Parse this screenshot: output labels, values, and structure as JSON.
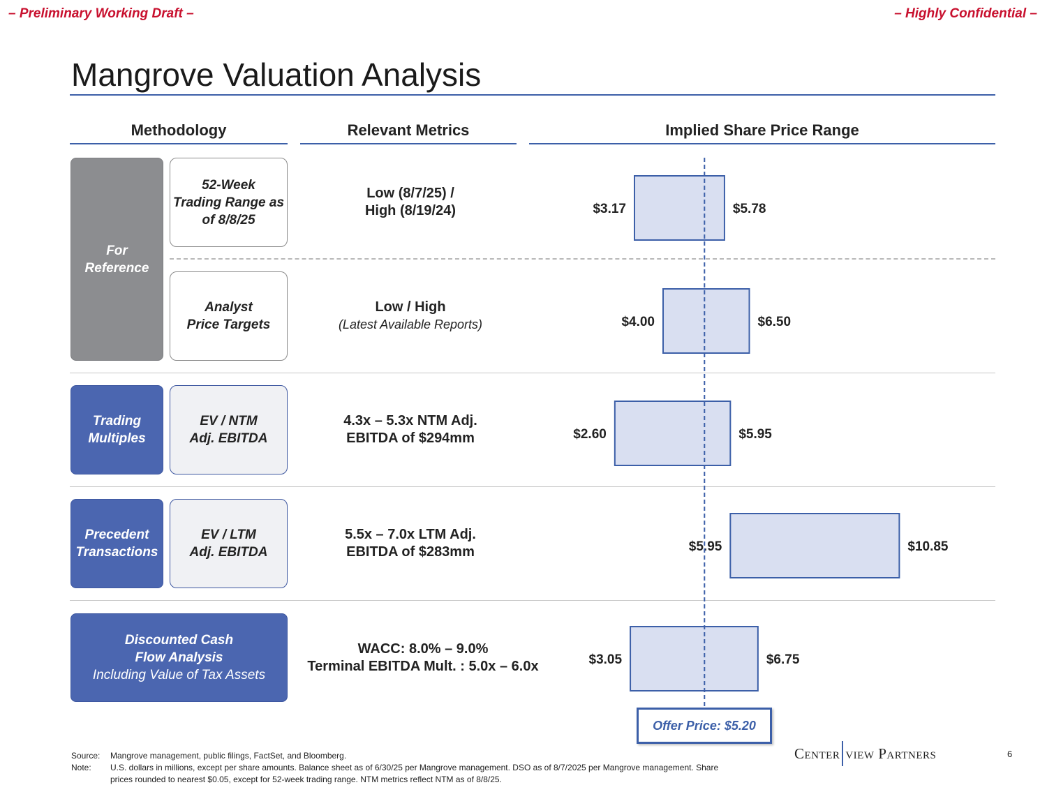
{
  "header": {
    "draft_label": "– Preliminary Working Draft –",
    "confidential_label": "– Highly Confidential –",
    "title": "Mangrove Valuation Analysis"
  },
  "columns": {
    "methodology": "Methodology",
    "metrics": "Relevant Metrics",
    "range": "Implied Share Price Range"
  },
  "categories": {
    "reference": [
      "For",
      "Reference"
    ],
    "trading": [
      "Trading",
      "Multiples"
    ],
    "precedent": [
      "Precedent",
      "Transactions"
    ]
  },
  "rows": [
    {
      "methodology": [
        "52-Week",
        "Trading Range as",
        "of 8/8/25"
      ],
      "metric": [
        "Low (8/7/25) /",
        "High (8/19/24)"
      ],
      "metric_sub": ""
    },
    {
      "methodology": [
        "Analyst",
        "Price Targets"
      ],
      "metric": [
        "Low / High"
      ],
      "metric_sub": "(Latest Available Reports)"
    },
    {
      "methodology": [
        "EV / NTM",
        "Adj. EBITDA"
      ],
      "metric": [
        "4.3x – 5.3x NTM Adj.",
        "EBITDA of $294mm"
      ],
      "metric_sub": ""
    },
    {
      "methodology": [
        "EV / LTM",
        "Adj. EBITDA"
      ],
      "metric": [
        "5.5x – 7.0x LTM Adj.",
        "EBITDA of $283mm"
      ],
      "metric_sub": ""
    },
    {
      "methodology": [
        "Discounted Cash",
        "Flow Analysis"
      ],
      "methodology_sub": "Including Value of Tax Assets",
      "metric": [
        "WACC: 8.0% – 9.0%",
        "Terminal EBITDA Mult. : 5.0x – 6.0x"
      ],
      "metric_sub": ""
    }
  ],
  "chart_data": {
    "type": "bar",
    "orientation": "horizontal-floating",
    "categories": [
      "52-Week Trading Range as of 8/8/25",
      "Analyst Price Targets",
      "EV / NTM Adj. EBITDA",
      "EV / LTM Adj. EBITDA",
      "Discounted Cash Flow Analysis"
    ],
    "series": [
      {
        "low": 3.17,
        "high": 5.78,
        "low_label": "$3.17",
        "high_label": "$5.78"
      },
      {
        "low": 4.0,
        "high": 6.5,
        "low_label": "$4.00",
        "high_label": "$6.50"
      },
      {
        "low": 2.6,
        "high": 5.95,
        "low_label": "$2.60",
        "high_label": "$5.95"
      },
      {
        "low": 5.95,
        "high": 10.85,
        "low_label": "$5.95",
        "high_label": "$10.85"
      },
      {
        "low": 3.05,
        "high": 6.75,
        "low_label": "$3.05",
        "high_label": "$6.75"
      }
    ],
    "reference_line": {
      "value": 5.2,
      "label": "Offer Price: $5.20"
    },
    "colors": {
      "bar_fill": "#d9dff1",
      "bar_stroke": "#3c5fa8",
      "reference_line": "#3c5fa8"
    }
  },
  "footer": {
    "source_key": "Source:",
    "source_text": "Mangrove management, public filings, FactSet, and Bloomberg.",
    "note_key": "Note:",
    "note_line1": "U.S. dollars in millions, except per share amounts. Balance sheet as of 6/30/25 per Mangrove management. DSO as of 8/7/2025 per Mangrove management. Share",
    "note_line2": "prices rounded to nearest $0.05, except for 52-week trading range. NTM metrics reflect NTM as of 8/8/25.",
    "logo_left": "Center",
    "logo_right": "view Partners",
    "page_number": "6"
  }
}
